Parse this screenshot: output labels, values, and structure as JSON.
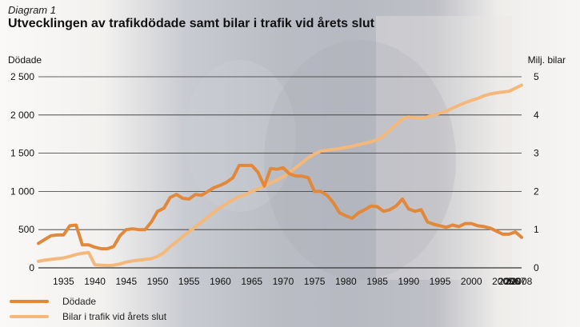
{
  "header": {
    "subtitle": "Diagram 1",
    "title": "Utvecklingen av trafikdödade samt bilar i trafik vid årets slut"
  },
  "colors": {
    "dodade": "#e2883a",
    "bilar": "#f4b97a",
    "gridline": "#333333",
    "text": "#222222"
  },
  "chart_data": {
    "type": "line",
    "title": "Utvecklingen av trafikdödade samt bilar i trafik vid årets slut",
    "subtitle": "Diagram 1",
    "xlabel": "",
    "ylabel_left": "Dödade",
    "ylabel_right": "Milj. bilar",
    "ylim_left": [
      0,
      2500
    ],
    "ylim_right": [
      0,
      5
    ],
    "yticks_left": [
      "0",
      "500",
      "1 000",
      "1 500",
      "2 000",
      "2 500"
    ],
    "yticks_right": [
      "0",
      "1",
      "2",
      "3",
      "4",
      "5"
    ],
    "x_tick_labels": [
      "1935",
      "1940",
      "1945",
      "1950",
      "1955",
      "1960",
      "1965",
      "1970",
      "1975",
      "1980",
      "1985",
      "1990",
      "1995",
      "2000",
      "2005",
      "2006",
      "2007",
      "2008"
    ],
    "grid": true,
    "legend_position": "bottom-left",
    "series": [
      {
        "name": "Dödade",
        "axis": "left",
        "points": [
          [
            "1931",
            320
          ],
          [
            "1932",
            370
          ],
          [
            "1933",
            420
          ],
          [
            "1934",
            430
          ],
          [
            "1935",
            430
          ],
          [
            "1936",
            550
          ],
          [
            "1937",
            560
          ],
          [
            "1938",
            300
          ],
          [
            "1939",
            300
          ],
          [
            "1940",
            270
          ],
          [
            "1941",
            250
          ],
          [
            "1942",
            250
          ],
          [
            "1943",
            280
          ],
          [
            "1944",
            420
          ],
          [
            "1945",
            500
          ],
          [
            "1946",
            510
          ],
          [
            "1947",
            500
          ],
          [
            "1948",
            500
          ],
          [
            "1949",
            600
          ],
          [
            "1950",
            740
          ],
          [
            "1951",
            780
          ],
          [
            "1952",
            920
          ],
          [
            "1953",
            960
          ],
          [
            "1954",
            910
          ],
          [
            "1955",
            900
          ],
          [
            "1956",
            960
          ],
          [
            "1957",
            950
          ],
          [
            "1958",
            1000
          ],
          [
            "1959",
            1050
          ],
          [
            "1960",
            1080
          ],
          [
            "1961",
            1120
          ],
          [
            "1962",
            1180
          ],
          [
            "1963",
            1340
          ],
          [
            "1964",
            1340
          ],
          [
            "1965",
            1340
          ],
          [
            "1966",
            1250
          ],
          [
            "1967",
            1070
          ],
          [
            "1968",
            1300
          ],
          [
            "1969",
            1290
          ],
          [
            "1970",
            1310
          ],
          [
            "1971",
            1230
          ],
          [
            "1972",
            1200
          ],
          [
            "1973",
            1200
          ],
          [
            "1974",
            1180
          ],
          [
            "1975",
            1000
          ],
          [
            "1976",
            1000
          ],
          [
            "1977",
            950
          ],
          [
            "1978",
            850
          ],
          [
            "1979",
            720
          ],
          [
            "1980",
            680
          ],
          [
            "1981",
            650
          ],
          [
            "1982",
            720
          ],
          [
            "1983",
            760
          ],
          [
            "1984",
            810
          ],
          [
            "1985",
            800
          ],
          [
            "1986",
            740
          ],
          [
            "1987",
            760
          ],
          [
            "1988",
            810
          ],
          [
            "1989",
            900
          ],
          [
            "1990",
            770
          ],
          [
            "1991",
            740
          ],
          [
            "1992",
            760
          ],
          [
            "1993",
            600
          ],
          [
            "1994",
            570
          ],
          [
            "1995",
            550
          ],
          [
            "1996",
            530
          ],
          [
            "1997",
            560
          ],
          [
            "1998",
            540
          ],
          [
            "1999",
            580
          ],
          [
            "2000",
            580
          ],
          [
            "2001",
            550
          ],
          [
            "2002",
            540
          ],
          [
            "2003",
            520
          ],
          [
            "2004",
            480
          ],
          [
            "2005",
            440
          ],
          [
            "2006",
            440
          ],
          [
            "2007",
            470
          ],
          [
            "2008",
            400
          ]
        ]
      },
      {
        "name": "Bilar i trafik vid årets slut",
        "axis": "right",
        "points": [
          [
            "1931",
            0.17
          ],
          [
            "1932",
            0.2
          ],
          [
            "1933",
            0.22
          ],
          [
            "1934",
            0.24
          ],
          [
            "1935",
            0.26
          ],
          [
            "1936",
            0.3
          ],
          [
            "1937",
            0.35
          ],
          [
            "1938",
            0.38
          ],
          [
            "1939",
            0.4
          ],
          [
            "1940",
            0.08
          ],
          [
            "1941",
            0.07
          ],
          [
            "1942",
            0.06
          ],
          [
            "1943",
            0.07
          ],
          [
            "1944",
            0.1
          ],
          [
            "1945",
            0.15
          ],
          [
            "1946",
            0.18
          ],
          [
            "1947",
            0.2
          ],
          [
            "1948",
            0.22
          ],
          [
            "1949",
            0.24
          ],
          [
            "1950",
            0.3
          ],
          [
            "1951",
            0.4
          ],
          [
            "1952",
            0.55
          ],
          [
            "1953",
            0.68
          ],
          [
            "1954",
            0.82
          ],
          [
            "1955",
            0.95
          ],
          [
            "1956",
            1.07
          ],
          [
            "1957",
            1.2
          ],
          [
            "1958",
            1.33
          ],
          [
            "1959",
            1.46
          ],
          [
            "1960",
            1.58
          ],
          [
            "1961",
            1.68
          ],
          [
            "1962",
            1.78
          ],
          [
            "1963",
            1.86
          ],
          [
            "1964",
            1.92
          ],
          [
            "1965",
            2.0
          ],
          [
            "1966",
            2.07
          ],
          [
            "1967",
            2.14
          ],
          [
            "1968",
            2.22
          ],
          [
            "1969",
            2.3
          ],
          [
            "1970",
            2.38
          ],
          [
            "1971",
            2.5
          ],
          [
            "1972",
            2.62
          ],
          [
            "1973",
            2.75
          ],
          [
            "1974",
            2.88
          ],
          [
            "1975",
            2.98
          ],
          [
            "1976",
            3.05
          ],
          [
            "1977",
            3.08
          ],
          [
            "1978",
            3.1
          ],
          [
            "1979",
            3.12
          ],
          [
            "1980",
            3.15
          ],
          [
            "1981",
            3.18
          ],
          [
            "1982",
            3.22
          ],
          [
            "1983",
            3.26
          ],
          [
            "1984",
            3.3
          ],
          [
            "1985",
            3.35
          ],
          [
            "1986",
            3.45
          ],
          [
            "1987",
            3.6
          ],
          [
            "1988",
            3.75
          ],
          [
            "1989",
            3.9
          ],
          [
            "1990",
            3.95
          ],
          [
            "1991",
            3.93
          ],
          [
            "1992",
            3.92
          ],
          [
            "1993",
            3.95
          ],
          [
            "1994",
            4.0
          ],
          [
            "1995",
            4.05
          ],
          [
            "1996",
            4.1
          ],
          [
            "1997",
            4.18
          ],
          [
            "1998",
            4.25
          ],
          [
            "1999",
            4.32
          ],
          [
            "2000",
            4.38
          ],
          [
            "2001",
            4.43
          ],
          [
            "2002",
            4.5
          ],
          [
            "2003",
            4.55
          ],
          [
            "2004",
            4.58
          ],
          [
            "2005",
            4.6
          ],
          [
            "2006",
            4.62
          ],
          [
            "2007",
            4.7
          ],
          [
            "2008",
            4.78
          ]
        ]
      }
    ]
  },
  "legend": [
    {
      "label": "Dödade",
      "color": "#e2883a"
    },
    {
      "label": "Bilar i trafik vid årets slut",
      "color": "#f4b97a"
    }
  ]
}
